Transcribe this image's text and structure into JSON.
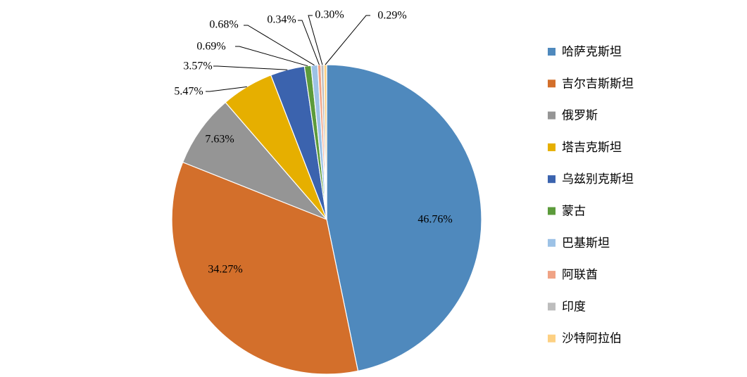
{
  "chart_data": {
    "type": "pie",
    "title": "",
    "start_angle_deg": 0,
    "direction": "clockwise",
    "legend_position": "right",
    "slices": [
      {
        "name": "哈萨克斯坦",
        "value": 46.76,
        "label": "46.76%",
        "color": "#4F89BD",
        "label_style": "inside"
      },
      {
        "name": "吉尔吉斯斯坦",
        "value": 34.27,
        "label": "34.27%",
        "color": "#D36F2B",
        "label_style": "inside"
      },
      {
        "name": "俄罗斯",
        "value": 7.63,
        "label": "7.63%",
        "color": "#959595",
        "label_style": "inside"
      },
      {
        "name": "塔吉克斯坦",
        "value": 5.47,
        "label": "5.47%",
        "color": "#E6AF00",
        "label_style": "outside"
      },
      {
        "name": "乌兹别克斯坦",
        "value": 3.57,
        "label": "3.57%",
        "color": "#3B63AE",
        "label_style": "outside"
      },
      {
        "name": "蒙古",
        "value": 0.69,
        "label": "0.69%",
        "color": "#5C9B3B",
        "label_style": "outside"
      },
      {
        "name": "巴基斯坦",
        "value": 0.68,
        "label": "0.68%",
        "color": "#9DC2E6",
        "label_style": "outside"
      },
      {
        "name": "阿联酋",
        "value": 0.34,
        "label": "0.34%",
        "color": "#F0A385",
        "label_style": "outside"
      },
      {
        "name": "印度",
        "value": 0.3,
        "label": "0.30%",
        "color": "#BDBDBD",
        "label_style": "outside"
      },
      {
        "name": "沙特阿拉伯",
        "value": 0.29,
        "label": "0.29%",
        "color": "#FDD082",
        "label_style": "outside"
      }
    ]
  }
}
